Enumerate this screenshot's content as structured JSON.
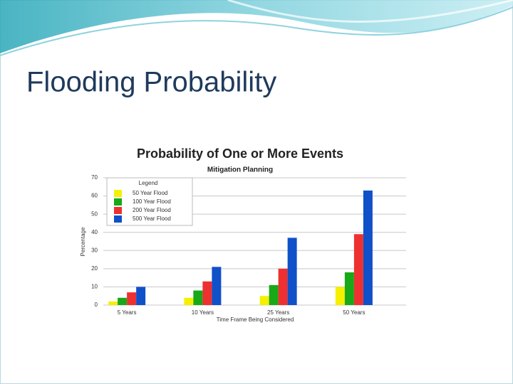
{
  "slide": {
    "title": "Flooding Probability"
  },
  "chart_data": {
    "type": "bar",
    "title": "Probability of One or More Events",
    "subtitle": "Mitigation Planning",
    "ylabel": "Percentage",
    "xlabel": "Time Frame Being Considered",
    "legend_title": "Legend",
    "legend": "upper left",
    "grid": true,
    "categories": [
      "5 Years",
      "10 Years",
      "25 Years",
      "50 Years"
    ],
    "series": [
      {
        "name": "50 Year Flood",
        "color": "#f5f000",
        "values": [
          2,
          4,
          5,
          10
        ]
      },
      {
        "name": "100 Year Flood",
        "color": "#18a818",
        "values": [
          4,
          8,
          11,
          18
        ]
      },
      {
        "name": "200 Year Flood",
        "color": "#ee3030",
        "values": [
          7,
          13,
          20,
          39
        ]
      },
      {
        "name": "500 Year Flood",
        "color": "#1050c8",
        "values": [
          10,
          21,
          37,
          63
        ]
      }
    ],
    "ylim": [
      0,
      70
    ],
    "yticks": [
      0,
      10,
      20,
      30,
      40,
      50,
      60,
      70
    ]
  }
}
